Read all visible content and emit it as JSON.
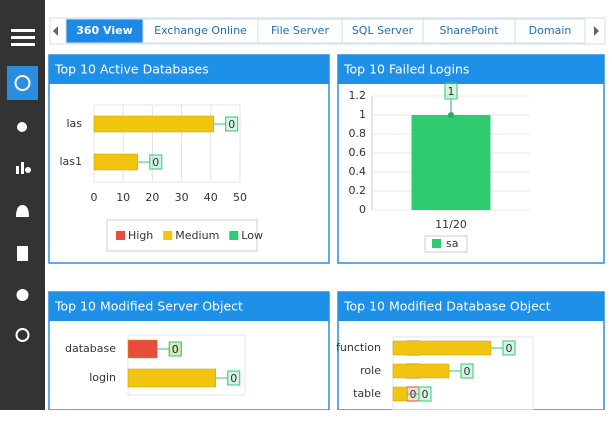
{
  "tabs": [
    "360 View",
    "Exchange Online",
    "File Server",
    "SQL Server",
    "SharePoint",
    "Domain"
  ],
  "chart_data": [
    {
      "type": "hbar",
      "title": "Top 10 Active Databases",
      "categories": [
        "las",
        "las1"
      ],
      "series": [
        {
          "name": "High",
          "color": "#e74c3c",
          "values": [
            0,
            0
          ]
        },
        {
          "name": "Medium",
          "color": "#f1c40f",
          "values": [
            41,
            15
          ]
        },
        {
          "name": "Low",
          "color": "#2ecc71",
          "values": [
            0,
            0
          ]
        }
      ],
      "xlim": [
        0,
        50
      ],
      "xticks": [
        0,
        10,
        20,
        30,
        40,
        50
      ],
      "grid": true,
      "legend": "bottom"
    },
    {
      "type": "bar",
      "title": "Top 10 Failed Logins",
      "categories": [
        "11/20"
      ],
      "series": [
        {
          "name": "sa",
          "color": "#2ecc71",
          "values": [
            1
          ]
        }
      ],
      "ylim": [
        0,
        1.2
      ],
      "yticks": [
        0,
        0.2,
        0.4,
        0.6,
        0.8,
        1,
        1.2
      ],
      "grid": true,
      "legend": "bottom"
    },
    {
      "type": "hbar",
      "title": "Top 10 Modified Server Object",
      "categories": [
        "database",
        "login"
      ],
      "series": [
        {
          "color": "#e74c3c",
          "values": [
            1,
            0
          ]
        },
        {
          "color": "#f1c40f",
          "values": [
            0,
            3
          ]
        },
        {
          "color": "#2ecc71",
          "values": [
            0,
            0
          ]
        }
      ],
      "xlim": [
        0,
        4
      ],
      "grid": true
    },
    {
      "type": "hbar",
      "title": "Top 10 Modified Database Object",
      "categories": [
        "function",
        "role",
        "table"
      ],
      "series": [
        {
          "color": "#e74c3c",
          "values": [
            0,
            0,
            0
          ]
        },
        {
          "color": "#f1c40f",
          "values": [
            7,
            4,
            1
          ]
        },
        {
          "color": "#2ecc71",
          "values": [
            0,
            0,
            0
          ]
        }
      ],
      "xlim": [
        0,
        10
      ],
      "grid": true
    }
  ]
}
